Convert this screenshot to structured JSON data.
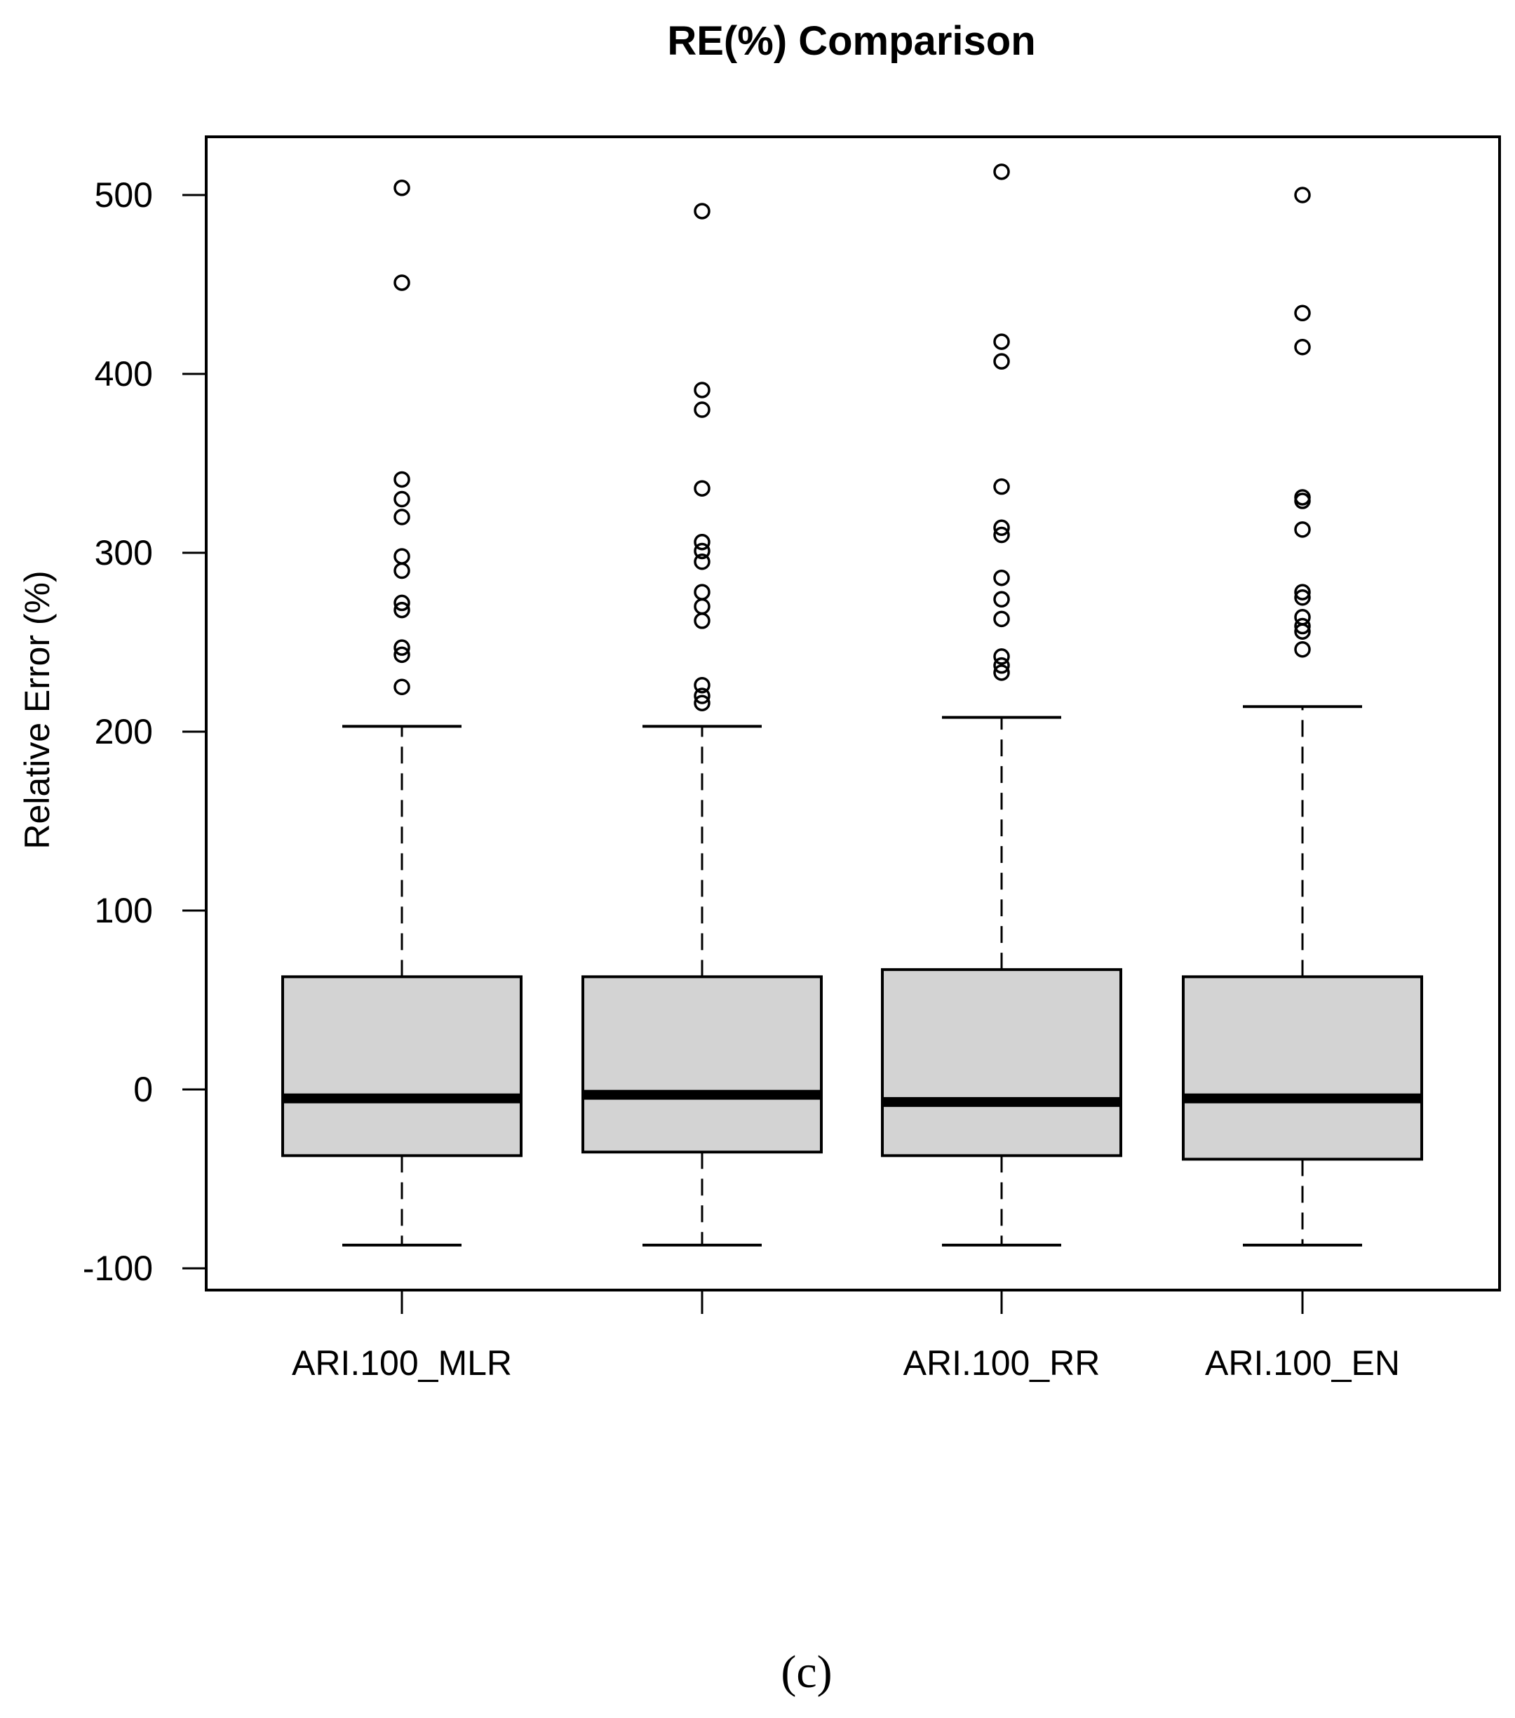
{
  "chart_data": {
    "type": "box",
    "title": "RE(%) Comparison",
    "xlabel": "",
    "ylabel": "Relative Error (%)",
    "ylim": [
      -110,
      535
    ],
    "yticks": [
      -100,
      0,
      100,
      200,
      300,
      400,
      500
    ],
    "ytick_labels": [
      "-100",
      "0",
      "100",
      "200",
      "300",
      "400",
      "500"
    ],
    "categories": [
      "ARI.100_MLR",
      "",
      "ARI.100_RR",
      "ARI.100_EN"
    ],
    "box_color": "#d3d3d3",
    "series": [
      {
        "whisker_low": -87,
        "q1": -37,
        "median": -5,
        "q3": 63,
        "whisker_high": 203,
        "outliers": [
          504,
          451,
          341,
          330,
          320,
          298,
          290,
          272,
          268,
          247,
          243,
          225
        ]
      },
      {
        "whisker_low": -87,
        "q1": -35,
        "median": -3,
        "q3": 63,
        "whisker_high": 203,
        "outliers": [
          491,
          391,
          380,
          336,
          306,
          301,
          295,
          278,
          270,
          262,
          226,
          220,
          216
        ]
      },
      {
        "whisker_low": -87,
        "q1": -37,
        "median": -7,
        "q3": 67,
        "whisker_high": 208,
        "outliers": [
          513,
          418,
          407,
          337,
          314,
          310,
          286,
          274,
          263,
          242,
          237,
          233
        ]
      },
      {
        "whisker_low": -87,
        "q1": -39,
        "median": -5,
        "q3": 63,
        "whisker_high": 214,
        "outliers": [
          500,
          434,
          415,
          331,
          329,
          313,
          278,
          275,
          264,
          259,
          256,
          246
        ]
      }
    ],
    "grid": false,
    "legend": "none"
  },
  "caption": "(c)"
}
